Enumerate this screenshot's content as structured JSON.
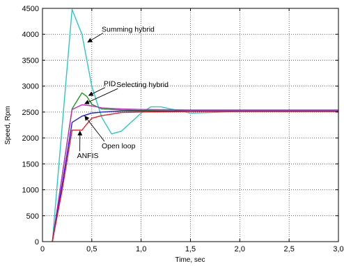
{
  "chart_data": {
    "type": "line",
    "title": "",
    "xlabel": "Time, sec",
    "ylabel": "Speed, Rpm",
    "xlim": [
      0,
      3
    ],
    "ylim": [
      0,
      4500
    ],
    "grid": true,
    "x_ticks": [
      0,
      0.5,
      1.0,
      1.5,
      2.0,
      2.5,
      3.0
    ],
    "x_tick_labels": [
      "0",
      "0,5",
      "1,0",
      "1,5",
      "2,0",
      "2,5",
      "3,0"
    ],
    "y_ticks": [
      0,
      500,
      1000,
      1500,
      2000,
      2500,
      3000,
      3500,
      4000,
      4500
    ],
    "y_tick_labels": [
      "0",
      "500",
      "1000",
      "1500",
      "2000",
      "2500",
      "3000",
      "3500",
      "4000",
      "4500"
    ],
    "series": [
      {
        "color": "#28c8c8",
        "x": [
          0.1,
          0.3,
          0.4,
          0.5,
          0.6,
          0.7,
          0.8,
          1.0,
          1.1,
          1.2,
          1.3,
          1.5,
          1.7,
          2.0,
          2.5,
          3.0
        ],
        "y": [
          0,
          4480,
          4000,
          3000,
          2400,
          2080,
          2130,
          2480,
          2600,
          2600,
          2560,
          2480,
          2490,
          2510,
          2510,
          2510
        ]
      },
      {
        "color": "#1a9a1a",
        "x": [
          0.1,
          0.3,
          0.4,
          0.45,
          0.5,
          0.6,
          0.8,
          1.0,
          1.5,
          2.0,
          3.0
        ],
        "y": [
          0,
          2560,
          2870,
          2800,
          2650,
          2560,
          2540,
          2530,
          2520,
          2520,
          2520
        ]
      },
      {
        "color": "#cc22cc",
        "x": [
          0.1,
          0.3,
          0.4,
          0.5,
          0.6,
          0.8,
          1.0,
          1.5,
          2.0,
          3.0
        ],
        "y": [
          0,
          2550,
          2640,
          2620,
          2580,
          2560,
          2550,
          2540,
          2540,
          2540
        ]
      },
      {
        "color": "#1a1aee",
        "x": [
          0.1,
          0.2,
          0.3,
          0.35,
          0.4,
          0.5,
          0.6,
          0.8,
          1.0,
          1.5,
          2.0,
          3.0
        ],
        "y": [
          0,
          1100,
          2300,
          2360,
          2420,
          2480,
          2500,
          2520,
          2520,
          2520,
          2520,
          2520
        ]
      },
      {
        "color": "#ee1a1a",
        "x": [
          0.1,
          0.2,
          0.3,
          0.4,
          0.45,
          0.5,
          0.6,
          0.7,
          0.8,
          1.0,
          1.5,
          2.0,
          3.0
        ],
        "y": [
          0,
          1000,
          2150,
          2150,
          2270,
          2380,
          2430,
          2460,
          2490,
          2500,
          2510,
          2510,
          2510
        ]
      }
    ],
    "annotations": [
      {
        "text": "Summing hybrid",
        "label_x": 0.6,
        "label_y": 4050,
        "arrow_x": 0.46,
        "arrow_y": 3850
      },
      {
        "text": "PID",
        "label_x": 0.62,
        "label_y": 3000,
        "arrow_x": 0.47,
        "arrow_y": 2820
      },
      {
        "text": "Selecting hybrid",
        "label_x": 0.75,
        "label_y": 2980,
        "arrow_x": 0.43,
        "arrow_y": 2660
      },
      {
        "text": "Open loop",
        "label_x": 0.6,
        "label_y": 1800,
        "arrow_x": 0.43,
        "arrow_y": 2420
      },
      {
        "text": "ANFIS",
        "label_x": 0.35,
        "label_y": 1610,
        "arrow_x": 0.38,
        "arrow_y": 2130
      }
    ]
  }
}
